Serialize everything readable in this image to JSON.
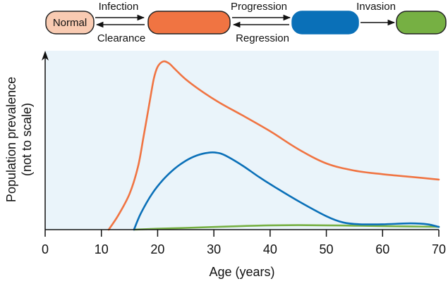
{
  "diagram": {
    "states": [
      {
        "label": "Normal",
        "color": "#f9cbb2"
      },
      {
        "label": "",
        "color": "#f07442"
      },
      {
        "label": "",
        "color": "#0a70b8"
      },
      {
        "label": "",
        "color": "#76b043"
      }
    ],
    "transitions": [
      {
        "forward": "Infection",
        "backward": "Clearance"
      },
      {
        "forward": "Progression",
        "backward": "Regression"
      },
      {
        "forward": "Invasion",
        "backward": ""
      }
    ]
  },
  "chart_data": {
    "type": "line",
    "title": "",
    "xlabel": "Age (years)",
    "ylabel": "Population prevalence",
    "ylabel_sub": "(not to scale)",
    "xlim": [
      0,
      70
    ],
    "ylim": [
      0,
      100
    ],
    "xticks": [
      0,
      10,
      20,
      30,
      40,
      50,
      60,
      70
    ],
    "xtick_labels": [
      "0",
      "10",
      "20",
      "30",
      "40",
      "50",
      "60",
      "70"
    ],
    "grid": false,
    "background": "#eaf4fa",
    "series": [
      {
        "name": "orange-state",
        "color": "#f07442",
        "x": [
          11.3,
          13,
          15,
          16.5,
          17.5,
          18.5,
          19.3,
          20,
          21,
          22,
          23,
          25,
          28,
          31,
          35,
          40,
          45,
          50,
          55,
          60,
          65,
          70
        ],
        "y": [
          0,
          8,
          20,
          35,
          52,
          70,
          84,
          91,
          94,
          93,
          90,
          84,
          77,
          71,
          64,
          55,
          45,
          37,
          33,
          31,
          29.5,
          28
        ]
      },
      {
        "name": "blue-state",
        "color": "#0a70b8",
        "x": [
          15.8,
          17,
          19,
          21,
          23,
          25,
          27,
          29,
          30.5,
          32,
          35,
          38,
          41,
          45,
          50,
          53,
          56,
          60,
          65,
          68,
          70
        ],
        "y": [
          0,
          9,
          20,
          28,
          34,
          38.5,
          41.5,
          43,
          43,
          41.5,
          36,
          29.5,
          23.5,
          16,
          7.5,
          4,
          3,
          3,
          3.5,
          3,
          1.5
        ]
      },
      {
        "name": "green-state",
        "color": "#76b043",
        "x": [
          15.8,
          20,
          25,
          30,
          35,
          40,
          45,
          50,
          55,
          60,
          65,
          70
        ],
        "y": [
          0,
          0.5,
          1.0,
          1.5,
          2.0,
          2.4,
          2.5,
          2.4,
          2.2,
          2.0,
          1.8,
          1.6
        ]
      }
    ]
  }
}
